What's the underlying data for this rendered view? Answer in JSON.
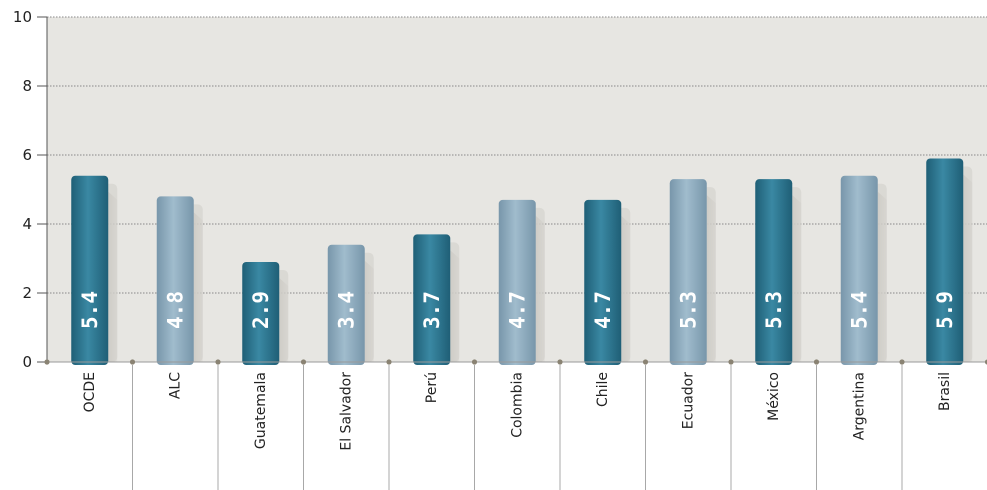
{
  "chart_data": {
    "type": "bar",
    "categories": [
      "OCDE",
      "ALC",
      "Guatemala",
      "El Salvador",
      "Perú",
      "Colombia",
      "Chile",
      "Ecuador",
      "México",
      "Argentina",
      "Brasil"
    ],
    "values": [
      5.4,
      4.8,
      2.9,
      3.4,
      3.7,
      4.7,
      4.7,
      5.3,
      5.3,
      5.4,
      5.9
    ],
    "value_labels": [
      "5.4",
      "4.8",
      "2.9",
      "3.4",
      "3.7",
      "4.7",
      "4.7",
      "5.3",
      "5.3",
      "5.4",
      "5.9"
    ],
    "yticks": [
      "0",
      "2",
      "4",
      "6",
      "8",
      "10"
    ],
    "ylim": [
      0,
      10
    ],
    "grid": true,
    "title": "",
    "xlabel": "",
    "ylabel": "",
    "colors": {
      "dark_bar": "#2d7690",
      "light_bar": "#8aa9bc",
      "background": "#e7e6e2",
      "grid": "#888888"
    },
    "bar_styles": [
      "dark",
      "light",
      "dark",
      "light",
      "dark",
      "light",
      "dark",
      "light",
      "dark",
      "light",
      "dark"
    ]
  }
}
